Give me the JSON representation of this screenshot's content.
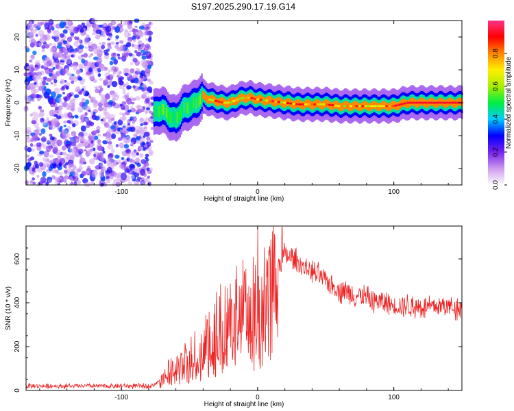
{
  "title": "S197.2025.290.17.19.G14",
  "chart_data": [
    {
      "type": "heatmap",
      "name": "spectrogram",
      "xlabel": "Height of straight line (km)",
      "ylabel": "Frequency (Hz)",
      "xlim": [
        -170,
        150
      ],
      "ylim": [
        -25,
        25
      ],
      "xticks": [
        "-100",
        "0",
        "100"
      ],
      "xtick_values": [
        -100,
        0,
        100
      ],
      "yticks": [
        "20",
        "10",
        "0",
        "-10",
        "-20"
      ],
      "ytick_values": [
        20,
        10,
        0,
        -10,
        -20
      ],
      "noise_region_x": [
        -170,
        -78
      ],
      "signal_ridge": {
        "x": [
          -75,
          -70,
          -65,
          -60,
          -55,
          -50,
          -45,
          -40,
          -35,
          -30,
          -25,
          -20,
          -15,
          -10,
          -5,
          0,
          10,
          20,
          30,
          40,
          50,
          60,
          70,
          80,
          90,
          100,
          110,
          120,
          130,
          140,
          150
        ],
        "freq": [
          -3,
          -2,
          -4,
          -5,
          -2,
          -1,
          0,
          2,
          1,
          0.5,
          0,
          0,
          1,
          1.5,
          1.5,
          1,
          0.5,
          0,
          -0.5,
          -0.5,
          -0.5,
          -1,
          -1,
          -1,
          -1,
          -1,
          0,
          0,
          0,
          0,
          0
        ]
      }
    },
    {
      "type": "line",
      "name": "snr",
      "xlabel": "Height of straight line (km)",
      "ylabel": "SNR (10 * v/v)",
      "xlim": [
        -170,
        150
      ],
      "ylim": [
        0,
        750
      ],
      "xticks": [
        "-100",
        "0",
        "100"
      ],
      "xtick_values": [
        -100,
        0,
        100
      ],
      "yticks": [
        "0",
        "200",
        "400",
        "600"
      ],
      "ytick_values": [
        0,
        200,
        400,
        600
      ],
      "color": "#ee2222",
      "envelope": {
        "x": [
          -170,
          -80,
          -75,
          -70,
          -65,
          -60,
          -50,
          -40,
          -30,
          -20,
          -10,
          0,
          10,
          18,
          20,
          25,
          30,
          40,
          50,
          60,
          80,
          100,
          120,
          140,
          150
        ],
        "y": [
          20,
          20,
          30,
          60,
          100,
          120,
          150,
          220,
          300,
          350,
          400,
          450,
          520,
          600,
          620,
          600,
          580,
          540,
          500,
          460,
          420,
          390,
          380,
          385,
          380
        ]
      },
      "peak": {
        "x": 18,
        "y": 745
      }
    }
  ],
  "colorbar": {
    "label": "Normalized spectral amplitude",
    "ticks": [
      "0.0",
      "0.2",
      "0.4",
      "0.6",
      "0.8"
    ],
    "tick_values": [
      0.0,
      0.2,
      0.4,
      0.6,
      0.8
    ],
    "range": [
      0,
      1
    ],
    "colors": [
      "#ffffff",
      "#cc99ee",
      "#7722ee",
      "#0000ff",
      "#00ccff",
      "#00ee44",
      "#aaee00",
      "#ffee00",
      "#ff8800",
      "#ff0000",
      "#ff3388"
    ]
  }
}
